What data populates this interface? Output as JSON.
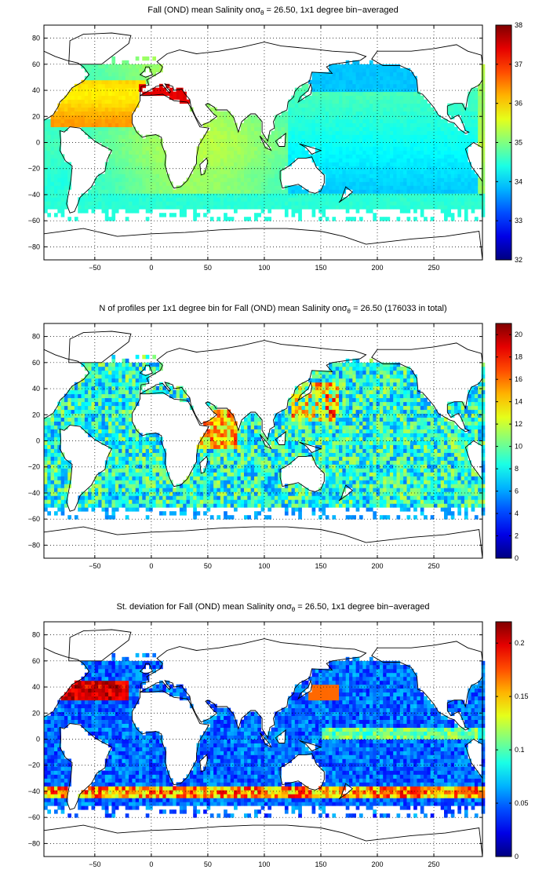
{
  "chart_data": [
    {
      "type": "heatmap",
      "title_prefix": "Fall (OND) mean Salinity on",
      "title_sigma": "σ",
      "title_sub": "θ",
      "title_suffix": " = 26.50, 1x1 degree bin−averaged",
      "x_ticks": [
        "−50",
        "0",
        "50",
        "100",
        "150",
        "200",
        "250"
      ],
      "y_ticks": [
        "80",
        "60",
        "40",
        "20",
        "0",
        "−20",
        "−40",
        "−60",
        "−80"
      ],
      "xlim": [
        -95,
        293
      ],
      "ylim": [
        -90,
        90
      ],
      "grid": true,
      "colorbar": {
        "range": [
          32,
          38
        ],
        "ticks": [
          "38",
          "37",
          "36",
          "35",
          "34",
          "33",
          "32"
        ]
      },
      "colormap": "jet",
      "field": "salinity"
    },
    {
      "type": "heatmap",
      "title_prefix": "N of profiles per 1x1 degree bin for Fall (OND) mean Salinity on",
      "title_sigma": "σ",
      "title_sub": "θ",
      "title_suffix": " = 26.50 (176033 in total)",
      "x_ticks": [
        "−50",
        "0",
        "50",
        "100",
        "150",
        "200",
        "250"
      ],
      "y_ticks": [
        "80",
        "60",
        "40",
        "20",
        "0",
        "−20",
        "−40",
        "−60",
        "−80"
      ],
      "xlim": [
        -95,
        293
      ],
      "ylim": [
        -90,
        90
      ],
      "grid": true,
      "colorbar": {
        "range": [
          0,
          21
        ],
        "ticks": [
          "20",
          "18",
          "16",
          "14",
          "12",
          "10",
          "8",
          "6",
          "4",
          "2",
          "0"
        ]
      },
      "colormap": "jet",
      "field": "count"
    },
    {
      "type": "heatmap",
      "title_prefix": "St. deviation for Fall (OND) mean Salinity on",
      "title_sigma": "σ",
      "title_sub": "θ",
      "title_suffix": " = 26.50, 1x1 degree bin−averaged",
      "x_ticks": [
        "−50",
        "0",
        "50",
        "100",
        "150",
        "200",
        "250"
      ],
      "y_ticks": [
        "80",
        "60",
        "40",
        "20",
        "0",
        "−20",
        "−40",
        "−60",
        "−80"
      ],
      "xlim": [
        -95,
        293
      ],
      "ylim": [
        -90,
        90
      ],
      "grid": true,
      "colorbar": {
        "range": [
          0,
          0.22
        ],
        "ticks": [
          "0.2",
          "0.15",
          "0.1",
          "0.05",
          "0"
        ]
      },
      "colormap": "jet",
      "field": "stdev"
    }
  ]
}
